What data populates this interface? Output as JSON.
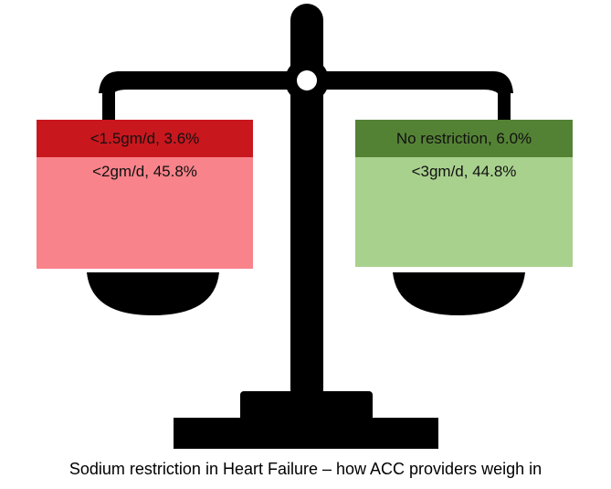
{
  "left_pan": {
    "top": "<1.5gm/d, 3.6%",
    "bottom": "<2gm/d, 45.8%"
  },
  "right_pan": {
    "top": "No restriction, 6.0%",
    "bottom": "<3gm/d, 44.8%"
  },
  "caption": "Sodium restriction in Heart Failure – how ACC providers weigh in"
}
